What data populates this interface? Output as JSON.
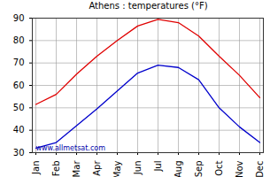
{
  "chart_data": {
    "type": "line",
    "title": "Athens : temperatures (°F)",
    "categories": [
      "Jan",
      "Feb",
      "Mar",
      "Apr",
      "May",
      "Jun",
      "Jul",
      "Aug",
      "Sep",
      "Oct",
      "Nov",
      "Dec"
    ],
    "series": [
      {
        "color": "#e00000",
        "values": [
          51.5,
          56,
          65,
          73,
          80,
          86.5,
          89.5,
          88,
          82,
          73,
          64.5,
          54.5
        ]
      },
      {
        "color": "#0000cc",
        "values": [
          32,
          34.5,
          42,
          49.5,
          57.5,
          65.5,
          69,
          68,
          62.5,
          50,
          41.5,
          34.5
        ]
      }
    ],
    "ylim": [
      30,
      90
    ],
    "yticks": [
      30,
      40,
      50,
      60,
      70,
      80,
      90
    ],
    "grid": true,
    "annotation": "www.allmetsat.com"
  }
}
